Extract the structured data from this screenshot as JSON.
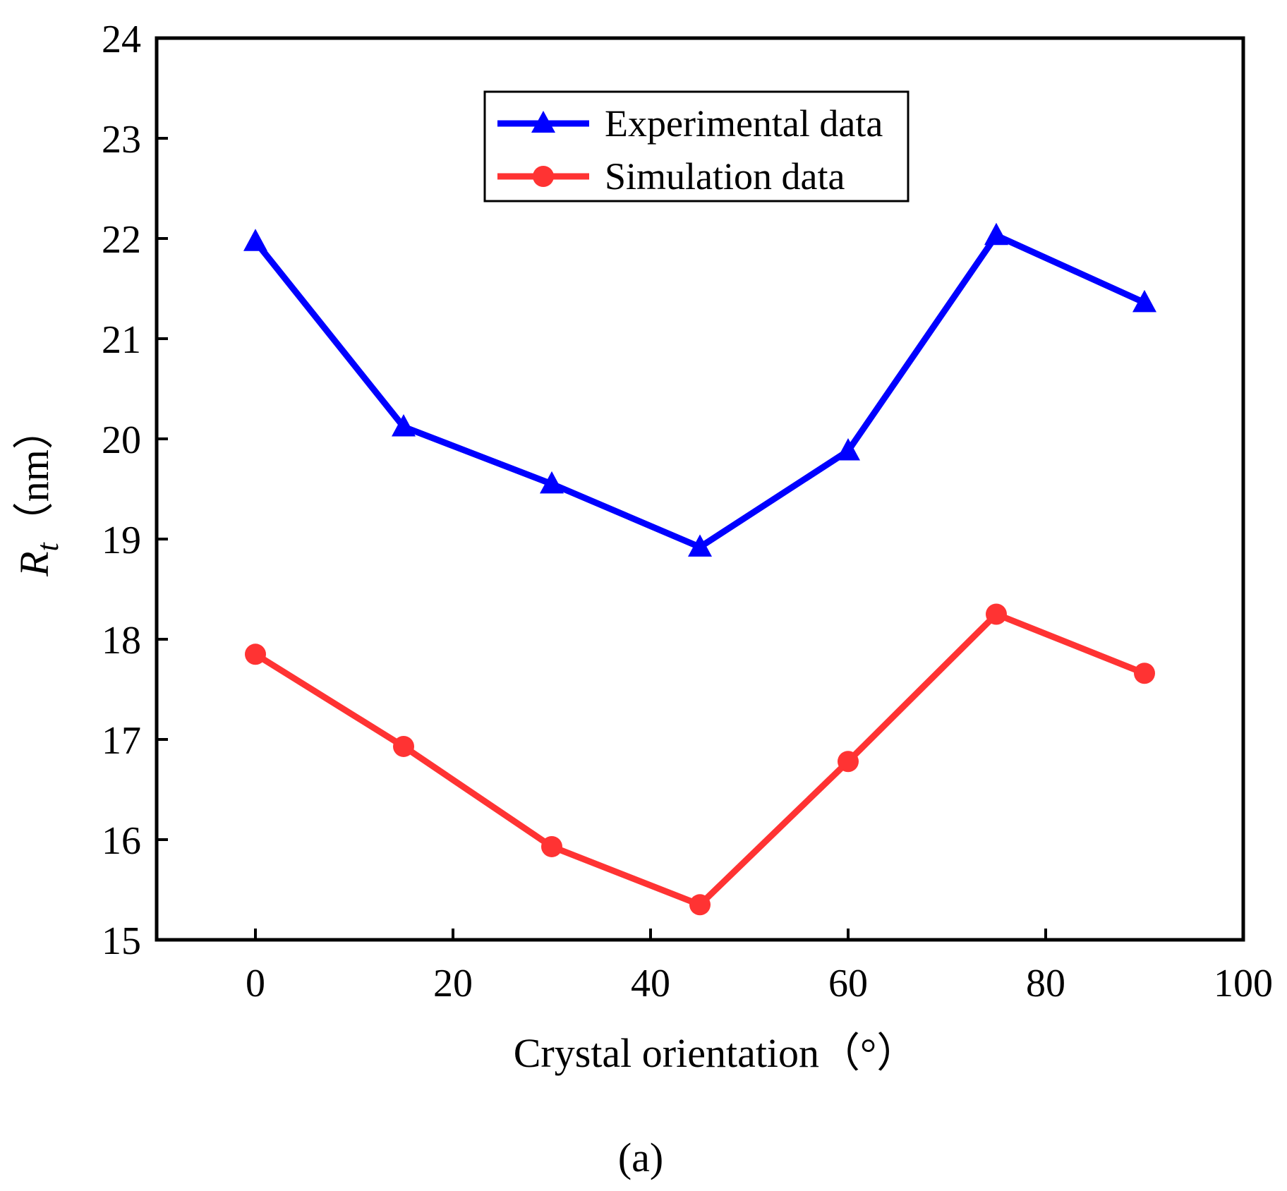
{
  "chart_data": {
    "type": "line",
    "xlabel": "Crystal orientation（°）",
    "ylabel_main": "R",
    "ylabel_sub": "t",
    "ylabel_unit": "（nm）",
    "xlim": [
      -10,
      100
    ],
    "ylim": [
      15,
      24
    ],
    "xticks": [
      0,
      20,
      40,
      60,
      80,
      100
    ],
    "yticks": [
      15,
      16,
      17,
      18,
      19,
      20,
      21,
      22,
      23,
      24
    ],
    "grid": false,
    "legend_position": "top-center",
    "x": [
      0,
      15,
      30,
      45,
      60,
      75,
      90
    ],
    "series": [
      {
        "name": "Experimental data",
        "values": [
          21.97,
          20.12,
          19.55,
          18.92,
          19.88,
          22.03,
          21.36
        ],
        "color": "#0000ff",
        "marker": "triangle"
      },
      {
        "name": "Simulation data",
        "values": [
          17.85,
          16.93,
          15.93,
          15.35,
          16.78,
          18.25,
          17.66
        ],
        "color": "#ff3333",
        "marker": "circle"
      }
    ]
  },
  "caption": "(a)"
}
